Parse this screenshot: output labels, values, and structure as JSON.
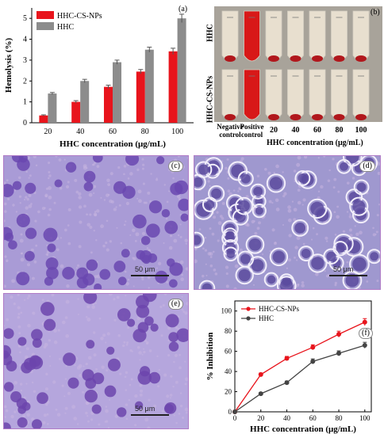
{
  "panels": {
    "a": {
      "label": "(a)"
    },
    "b": {
      "label": "(b)",
      "row_labels": [
        "HHC",
        "HHC-CS-NPs"
      ],
      "tube_labels": [
        "Negative\ncontrol",
        "Positive\ncontrol",
        "20",
        "40",
        "60",
        "80",
        "100"
      ],
      "xlabel": "HHC concentration (μg/mL)"
    },
    "c": {
      "label": "(c)",
      "scale": "50 μm"
    },
    "d": {
      "label": "(d)",
      "scale": "50 μm"
    },
    "e": {
      "label": "(e)",
      "scale": "50 μm"
    },
    "f": {
      "label": "(f)"
    }
  },
  "colors": {
    "red": "#e8141c",
    "gray": "#8c8c8c",
    "dark": "#444444",
    "stain": "#7a5bb5"
  },
  "chart_data": [
    {
      "type": "bar",
      "categories": [
        "20",
        "40",
        "60",
        "80",
        "100"
      ],
      "series": [
        {
          "name": "HHC-CS-NPs",
          "values": [
            0.35,
            1.0,
            1.72,
            2.45,
            3.42
          ],
          "errors": [
            0.03,
            0.06,
            0.08,
            0.1,
            0.15
          ],
          "color": "#e8141c"
        },
        {
          "name": "HHC",
          "values": [
            1.4,
            2.0,
            2.9,
            3.5,
            5.0
          ],
          "errors": [
            0.05,
            0.08,
            0.1,
            0.12,
            0.2
          ],
          "color": "#8c8c8c"
        }
      ],
      "xlabel": "HHC concentration (μg/mL)",
      "ylabel": "Hemolysis (%)",
      "ylim": [
        0,
        5.5
      ],
      "yticks": [
        "0",
        "1",
        "2",
        "3",
        "4",
        "5"
      ],
      "legend": "top-left"
    },
    {
      "type": "line",
      "x": [
        0,
        20,
        40,
        60,
        80,
        100
      ],
      "xticks": [
        "0",
        "20",
        "40",
        "60",
        "80",
        "100"
      ],
      "series": [
        {
          "name": "HHC-CS-NPs",
          "values": [
            0,
            37,
            53,
            64,
            77,
            89
          ],
          "errors": [
            0,
            1.5,
            2,
            2.5,
            3,
            3.5
          ],
          "color": "#e8141c"
        },
        {
          "name": "HHC",
          "values": [
            0,
            18,
            29,
            50,
            58,
            66
          ],
          "errors": [
            0,
            1.2,
            1.5,
            2.5,
            2.5,
            3
          ],
          "color": "#444444"
        }
      ],
      "xlabel": "HHC concentration (μg/mL)",
      "ylabel": "% Inhibition",
      "ylim": [
        0,
        110
      ],
      "yticks": [
        "0",
        "20",
        "40",
        "60",
        "80",
        "100"
      ],
      "legend": "top-left"
    }
  ]
}
